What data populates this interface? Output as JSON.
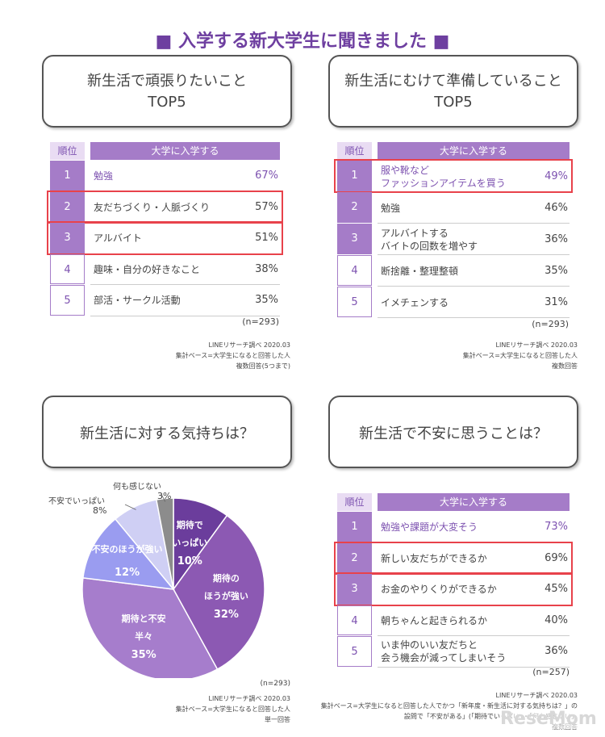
{
  "title": "入学する新大学生に聞きました",
  "tables": [
    {
      "title_lines": [
        "新生活で頑張りたいこと",
        "TOP5"
      ],
      "rank_header": "順位",
      "column": "大学に入学する",
      "rows": [
        [
          "1",
          "勉強",
          "67%"
        ],
        [
          "2",
          "友だちづくり・人脈づくり",
          "57%"
        ],
        [
          "3",
          "アルバイト",
          "51%"
        ],
        [
          "4",
          "趣味・自分の好きなこと",
          "38%"
        ],
        [
          "5",
          "部活・サークル活動",
          "35%"
        ]
      ],
      "highlighted": [
        false,
        true,
        true,
        false,
        false
      ],
      "n": "(n=293)",
      "notes": [
        "LINEリサーチ調べ 2020.03",
        "集計ベース=大学生になると回答した人",
        "複数回答(5つまで)"
      ]
    },
    {
      "title_lines": [
        "新生活にむけて準備していること",
        "TOP5"
      ],
      "rank_header": "順位",
      "column": "大学に入学する",
      "rows": [
        [
          "1",
          "服や靴など\nファッションアイテムを買う",
          "49%"
        ],
        [
          "2",
          "勉強",
          "46%"
        ],
        [
          "3",
          "アルバイトする\nバイトの回数を増やす",
          "36%"
        ],
        [
          "4",
          "断捨離・整理整頓",
          "35%"
        ],
        [
          "5",
          "イメチェンする",
          "31%"
        ]
      ],
      "highlighted": [
        true,
        false,
        false,
        false,
        false
      ],
      "n": "(n=293)",
      "notes": [
        "LINEリサーチ調べ 2020.03",
        "集計ベース=大学生になると回答した人",
        "複数回答"
      ]
    },
    {
      "title_lines": [
        "新生活で不安に思うことは？"
      ],
      "rank_header": "順位",
      "column": "大学に入学する",
      "rows": [
        [
          "1",
          "勉強や課題が大変そう",
          "73%"
        ],
        [
          "2",
          "新しい友だちができるか",
          "69%"
        ],
        [
          "3",
          "お金のやりくりができるか",
          "45%"
        ],
        [
          "4",
          "朝ちゃんと起きられるか",
          "40%"
        ],
        [
          "5",
          "いま仲のいい友だちと\n会う機会が減ってしまいそう",
          "36%"
        ]
      ],
      "highlighted": [
        false,
        true,
        true,
        false,
        false
      ],
      "n": "(n=257)",
      "notes": [
        "LINEリサーチ調べ 2020.03",
        "集計ベース=大学生になると回答した人でかつ「新年度・新生活に対する気持ちは？」の",
        "設問で「不安がある」(「期待でいっぱい」・「何も感じない」",
        "複数回答"
      ]
    }
  ],
  "chart_data": {
    "type": "pie",
    "title": "新生活に対する気持ちは？",
    "categories": [
      "期待で\nいっぱい",
      "期待の\nほうが強い",
      "期待と不安\n半々",
      "不安のほうが強い",
      "不安でいっぱい",
      "何も感じない"
    ],
    "values": [
      10,
      32,
      35,
      12,
      8,
      3
    ],
    "value_labels": [
      "10%",
      "32%",
      "35%",
      "12%",
      "8%",
      "3%"
    ],
    "colors": [
      "#6b3d9c",
      "#8c59b3",
      "#a67dcc",
      "#9a9cf0",
      "#cfcff4",
      "#8c8c8c"
    ],
    "n": "(n=293)",
    "notes": [
      "LINEリサーチ調べ 2020.03",
      "集計ベース=大学生になると回答した人",
      "単一回答"
    ]
  },
  "logo": "ReseMom"
}
